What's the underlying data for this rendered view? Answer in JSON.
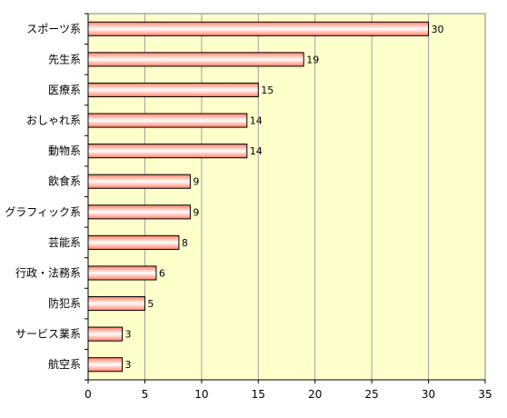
{
  "chart_data": {
    "type": "bar",
    "orientation": "horizontal",
    "categories": [
      "スポーツ系",
      "先生系",
      "医療系",
      "おしゃれ系",
      "動物系",
      "飲食系",
      "グラフィック系",
      "芸能系",
      "行政・法務系",
      "防犯系",
      "サービス業系",
      "航空系"
    ],
    "values": [
      30,
      19,
      15,
      14,
      14,
      9,
      9,
      8,
      6,
      5,
      3,
      3
    ],
    "data_labels": [
      "30",
      "19",
      "15",
      "14",
      "14",
      "9",
      "9",
      "8",
      "6",
      "5",
      "3",
      "3"
    ],
    "xlim": [
      0,
      35
    ],
    "xticks": [
      "0",
      "5",
      "10",
      "15",
      "20",
      "25",
      "30",
      "35"
    ],
    "title": "",
    "xlabel": "",
    "ylabel": "",
    "grid": "vertical",
    "legend": "none",
    "colors": {
      "plot_background": "#ffffcc",
      "bar_fill_edge": "#ff7f66",
      "bar_fill_center": "#ffffff",
      "bar_border": "#000000",
      "gridline": "#a0a0a0"
    }
  }
}
